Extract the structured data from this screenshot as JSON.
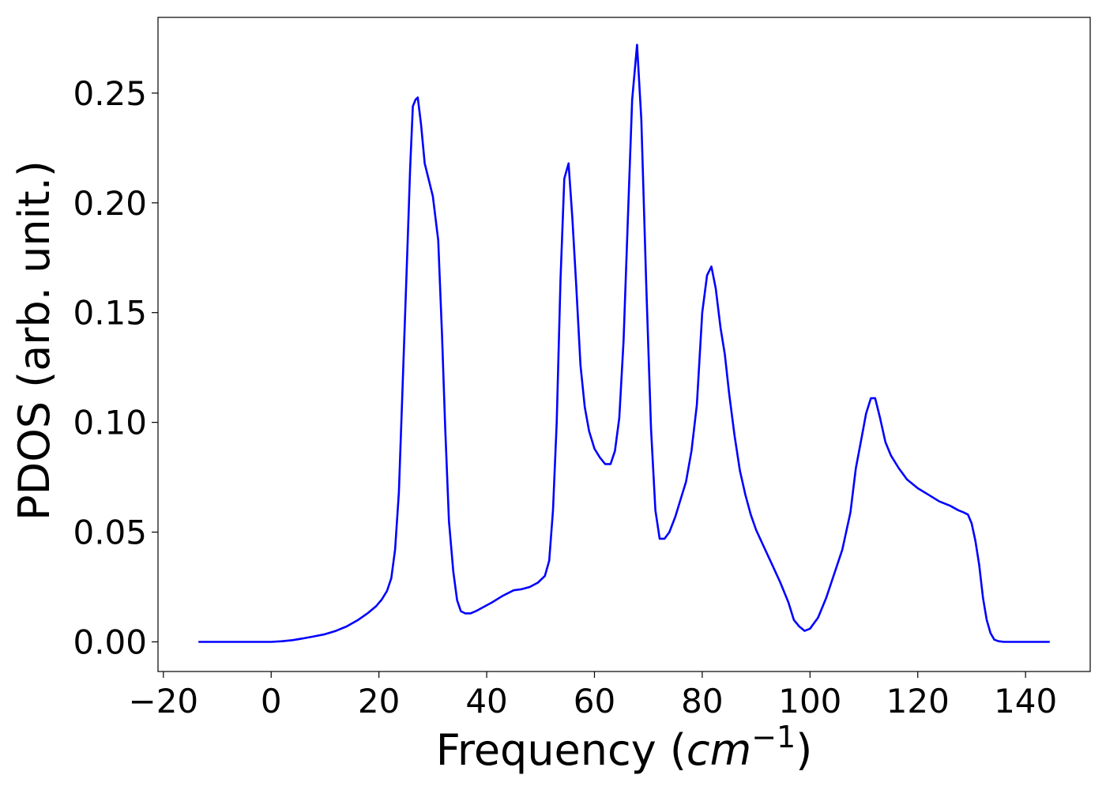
{
  "chart_data": {
    "type": "line",
    "title": "",
    "xlabel": "Frequency (",
    "xlabel_math": "cm",
    "xlabel_sup": "−1",
    "xlabel_close": ")",
    "ylabel": "PDOS (arb. unit.)",
    "xlim": [
      -21,
      152
    ],
    "ylim": [
      -0.0135,
      0.2845
    ],
    "xticks": [
      -20,
      0,
      20,
      40,
      60,
      80,
      100,
      120,
      140
    ],
    "xtick_labels": [
      "−20",
      "0",
      "20",
      "40",
      "60",
      "80",
      "100",
      "120",
      "140"
    ],
    "yticks": [
      0.0,
      0.05,
      0.1,
      0.15,
      0.2,
      0.25
    ],
    "ytick_labels": [
      "0.00",
      "0.05",
      "0.10",
      "0.15",
      "0.20",
      "0.25"
    ],
    "grid": false,
    "series": [
      {
        "color": "#0000ff",
        "x": [
          -13.5,
          -8,
          -2,
          0,
          2,
          4,
          6,
          8,
          10,
          12,
          14,
          16,
          18,
          19.5,
          20.5,
          21.5,
          22.3,
          23,
          23.7,
          24.3,
          24.8,
          25.3,
          25.8,
          26.3,
          26.8,
          27.2,
          27.8,
          28.5,
          29.3,
          30,
          31,
          31.7,
          32.3,
          33,
          33.8,
          34.5,
          35.2,
          36,
          37,
          38,
          39.5,
          41,
          43,
          45,
          46.5,
          48,
          49.5,
          50.8,
          51.6,
          52.3,
          53,
          53.7,
          54.4,
          55.2,
          55.9,
          56.6,
          57.4,
          58.2,
          59,
          60,
          61,
          62,
          63,
          63.8,
          64.6,
          65.4,
          66.2,
          67,
          67.9,
          68.7,
          69.6,
          70.5,
          71.3,
          72.1,
          73,
          73.9,
          75,
          76,
          77,
          78,
          79,
          80,
          80.9,
          81.7,
          82.5,
          83.4,
          84.2,
          85,
          86,
          87,
          88,
          89,
          90,
          91.5,
          93,
          94.5,
          96,
          97,
          98,
          99,
          100,
          101.5,
          103,
          104.5,
          106,
          107.5,
          108.5,
          109.5,
          110.4,
          111.3,
          112.1,
          113,
          114,
          115,
          116.5,
          118,
          120,
          122,
          124,
          126,
          127.5,
          128.5,
          129.3,
          130,
          130.7,
          131.4,
          132.1,
          132.8,
          133.5,
          134.2,
          135,
          136,
          140,
          144.5
        ],
        "y": [
          0.0,
          0.0,
          0.0,
          0.0,
          0.0003,
          0.0008,
          0.0016,
          0.0025,
          0.0035,
          0.005,
          0.007,
          0.0098,
          0.0132,
          0.0163,
          0.0192,
          0.0232,
          0.029,
          0.042,
          0.068,
          0.11,
          0.145,
          0.18,
          0.216,
          0.244,
          0.247,
          0.248,
          0.236,
          0.218,
          0.21,
          0.203,
          0.183,
          0.14,
          0.098,
          0.055,
          0.032,
          0.019,
          0.014,
          0.013,
          0.013,
          0.014,
          0.016,
          0.018,
          0.021,
          0.0235,
          0.024,
          0.025,
          0.027,
          0.03,
          0.037,
          0.06,
          0.1,
          0.165,
          0.211,
          0.218,
          0.193,
          0.163,
          0.126,
          0.107,
          0.096,
          0.088,
          0.084,
          0.081,
          0.081,
          0.087,
          0.102,
          0.137,
          0.193,
          0.247,
          0.272,
          0.238,
          0.163,
          0.097,
          0.06,
          0.047,
          0.047,
          0.05,
          0.057,
          0.065,
          0.073,
          0.087,
          0.108,
          0.15,
          0.167,
          0.171,
          0.161,
          0.143,
          0.131,
          0.113,
          0.094,
          0.078,
          0.067,
          0.058,
          0.051,
          0.043,
          0.035,
          0.027,
          0.018,
          0.01,
          0.007,
          0.005,
          0.006,
          0.011,
          0.02,
          0.031,
          0.042,
          0.059,
          0.079,
          0.092,
          0.104,
          0.111,
          0.111,
          0.102,
          0.091,
          0.085,
          0.079,
          0.074,
          0.07,
          0.067,
          0.064,
          0.062,
          0.06,
          0.059,
          0.058,
          0.054,
          0.046,
          0.035,
          0.02,
          0.01,
          0.004,
          0.001,
          0.0003,
          0.0,
          0.0,
          0.0
        ]
      }
    ]
  }
}
